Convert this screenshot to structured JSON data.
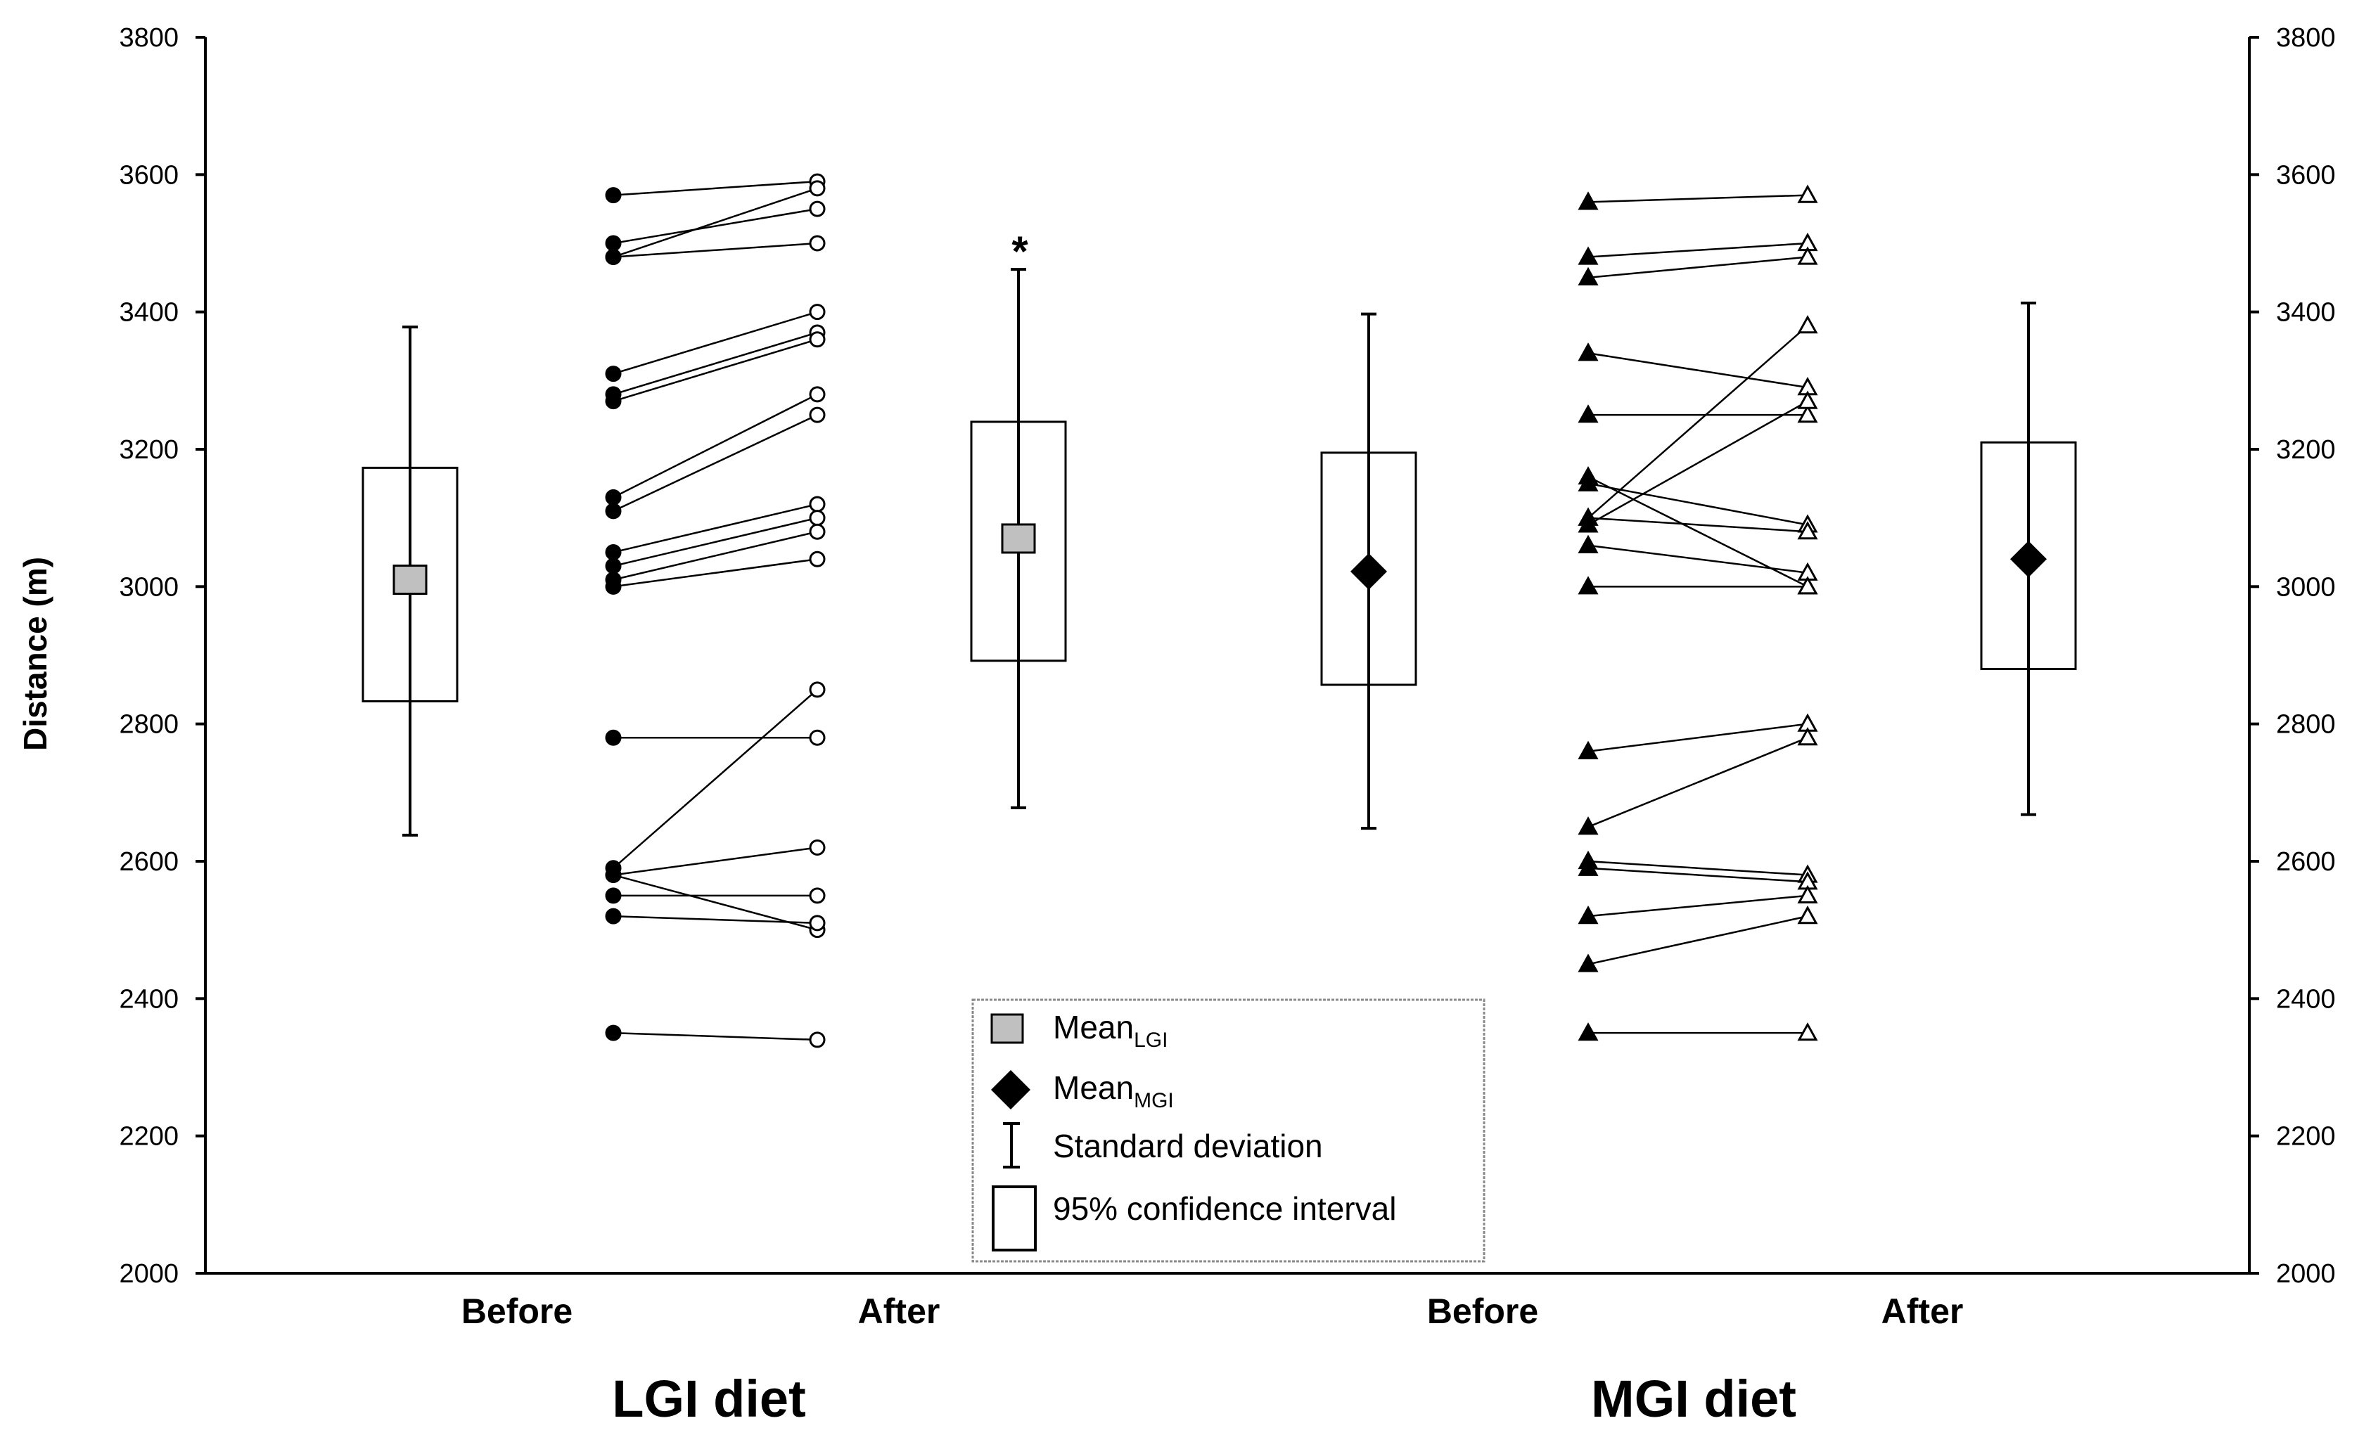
{
  "chart_data": {
    "type": "scatter",
    "ylabel": "Distance (m)",
    "ylim": [
      2000,
      3800
    ],
    "yticks": [
      "2000",
      "2200",
      "2400",
      "2600",
      "2800",
      "3000",
      "3200",
      "3400",
      "3600",
      "3800"
    ],
    "categories": [
      "Before",
      "After",
      "Before",
      "After"
    ],
    "groups": [
      "LGI diet",
      "MGI diet"
    ],
    "significance_marker": "*",
    "summary": [
      {
        "group": "LGI diet",
        "time": "Before",
        "marker": "square",
        "color": "#c0c0c0",
        "mean": 3010,
        "ci": [
          2833,
          3173
        ],
        "sd": [
          2638,
          3378
        ]
      },
      {
        "group": "LGI diet",
        "time": "After",
        "marker": "square",
        "color": "#c0c0c0",
        "mean": 3070,
        "ci": [
          2892,
          3240
        ],
        "sd": [
          2678,
          3462
        ],
        "annotation": "*"
      },
      {
        "group": "MGI diet",
        "time": "Before",
        "marker": "diamond",
        "color": "#000000",
        "mean": 3022,
        "ci": [
          2857,
          3195
        ],
        "sd": [
          2648,
          3397
        ]
      },
      {
        "group": "MGI diet",
        "time": "After",
        "marker": "diamond",
        "color": "#000000",
        "mean": 3040,
        "ci": [
          2880,
          3210
        ],
        "sd": [
          2668,
          3413
        ]
      }
    ],
    "series": [
      {
        "name": "LGI individual",
        "before_marker": "filled-circle",
        "after_marker": "open-circle",
        "pairs": [
          [
            3570,
            3590
          ],
          [
            3500,
            3550
          ],
          [
            3480,
            3580
          ],
          [
            3480,
            3500
          ],
          [
            3310,
            3400
          ],
          [
            3280,
            3370
          ],
          [
            3270,
            3360
          ],
          [
            3130,
            3280
          ],
          [
            3110,
            3250
          ],
          [
            3050,
            3120
          ],
          [
            3030,
            3100
          ],
          [
            3010,
            3080
          ],
          [
            3000,
            3040
          ],
          [
            2780,
            2780
          ],
          [
            2590,
            2850
          ],
          [
            2580,
            2620
          ],
          [
            2580,
            2500
          ],
          [
            2550,
            2550
          ],
          [
            2520,
            2510
          ],
          [
            2350,
            2340
          ]
        ]
      },
      {
        "name": "MGI individual",
        "before_marker": "filled-triangle",
        "after_marker": "open-triangle",
        "pairs": [
          [
            3560,
            3570
          ],
          [
            3480,
            3500
          ],
          [
            3450,
            3480
          ],
          [
            3340,
            3290
          ],
          [
            3250,
            3250
          ],
          [
            3160,
            3000
          ],
          [
            3150,
            3090
          ],
          [
            3100,
            3380
          ],
          [
            3090,
            3270
          ],
          [
            3100,
            3080
          ],
          [
            3060,
            3020
          ],
          [
            3000,
            3000
          ],
          [
            2760,
            2800
          ],
          [
            2650,
            2780
          ],
          [
            2600,
            2580
          ],
          [
            2590,
            2570
          ],
          [
            2520,
            2550
          ],
          [
            2450,
            2520
          ],
          [
            2350,
            2350
          ]
        ]
      }
    ]
  },
  "legend": {
    "mean_lgi": {
      "main": "Mean",
      "sub": "LGI"
    },
    "mean_mgi": {
      "main": "Mean",
      "sub": "MGI"
    },
    "sd": "Standard deviation",
    "ci": "95% confidence interval"
  }
}
